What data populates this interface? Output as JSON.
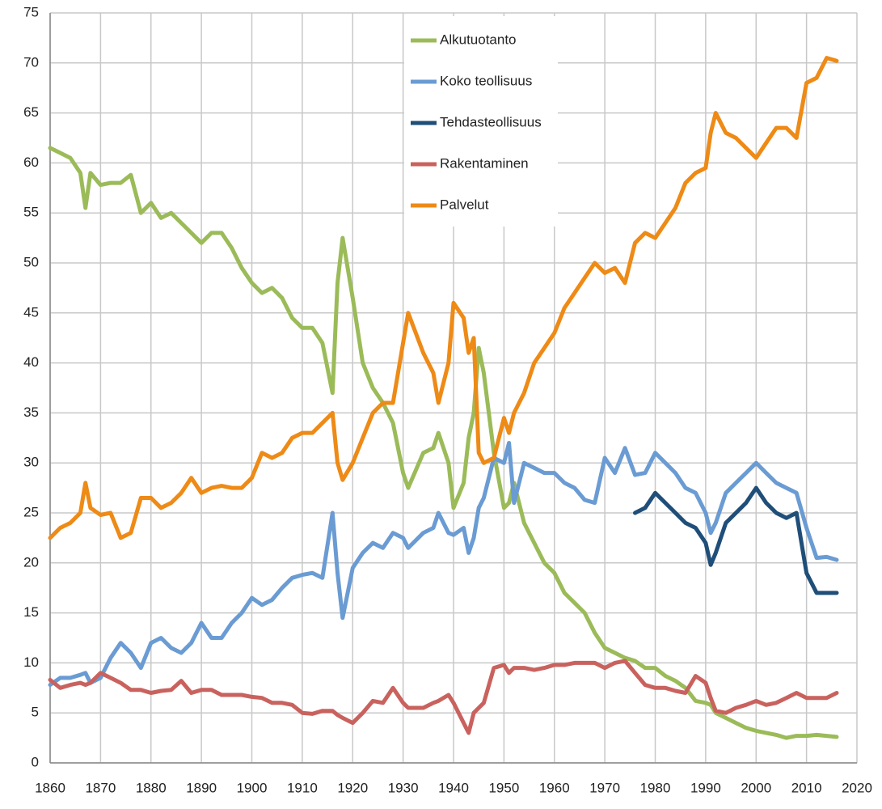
{
  "chart_data": {
    "type": "line",
    "x": [
      1860,
      1862,
      1864,
      1866,
      1867,
      1868,
      1870,
      1872,
      1874,
      1876,
      1878,
      1880,
      1882,
      1884,
      1886,
      1888,
      1890,
      1892,
      1894,
      1896,
      1898,
      1900,
      1902,
      1904,
      1906,
      1908,
      1910,
      1912,
      1914,
      1916,
      1917,
      1918,
      1920,
      1922,
      1924,
      1926,
      1928,
      1930,
      1931,
      1934,
      1936,
      1937,
      1939,
      1940,
      1942,
      1943,
      1944,
      1945,
      1946,
      1948,
      1950,
      1951,
      1952,
      1954,
      1956,
      1958,
      1960,
      1962,
      1964,
      1966,
      1968,
      1970,
      1972,
      1974,
      1976,
      1978,
      1980,
      1982,
      1984,
      1986,
      1988,
      1990,
      1991,
      1992,
      1994,
      1996,
      1998,
      2000,
      2002,
      2004,
      2006,
      2008,
      2010,
      2012,
      2014,
      2016
    ],
    "series": [
      {
        "name": "Alkutuotanto",
        "color": "#9bbb59",
        "values": [
          61.5,
          61,
          60.5,
          59,
          55.5,
          59,
          57.8,
          58,
          58,
          58.8,
          55,
          56,
          54.5,
          55,
          54,
          53,
          52,
          53,
          53,
          51.5,
          49.5,
          48,
          47,
          47.5,
          46.5,
          44.5,
          43.5,
          43.5,
          42,
          37,
          48,
          52.5,
          46.5,
          40,
          37.5,
          36,
          34,
          29,
          27.5,
          31,
          31.5,
          33,
          30,
          25.5,
          28,
          32.5,
          35,
          41.5,
          39,
          31,
          25.5,
          26,
          28,
          24,
          22,
          20,
          19,
          17,
          16,
          15,
          13,
          11.5,
          11,
          10.5,
          10.2,
          9.5,
          9.5,
          8.7,
          8.2,
          7.5,
          6.2,
          6,
          5.8,
          5,
          4.5,
          4,
          3.5,
          3.2,
          3,
          2.8,
          2.5,
          2.7,
          2.7,
          2.8,
          2.7,
          2.6
        ]
      },
      {
        "name": "Koko teollisuus",
        "color": "#6a9bd3",
        "values": [
          7.8,
          8.5,
          8.5,
          8.8,
          9,
          8,
          8.5,
          10.5,
          12,
          11,
          9.5,
          12,
          12.5,
          11.5,
          11,
          12,
          14,
          12.5,
          12.5,
          14,
          15,
          16.5,
          15.8,
          16.3,
          17.5,
          18.5,
          18.8,
          19,
          18.5,
          25,
          19,
          14.5,
          19.5,
          21,
          22,
          21.5,
          23,
          22.5,
          21.5,
          23,
          23.5,
          25,
          23,
          22.8,
          23.5,
          21,
          22.5,
          25.5,
          26.5,
          30.5,
          30,
          32,
          26,
          30,
          29.5,
          29,
          29,
          28,
          27.5,
          26.3,
          26,
          30.5,
          29,
          31.5,
          28.8,
          29,
          31,
          30,
          29,
          27.5,
          27,
          25,
          23,
          24,
          27,
          28,
          29,
          30,
          29,
          28,
          27.5,
          27,
          23.5,
          20.5,
          20.6,
          20.3
        ]
      },
      {
        "name": "Tehdasteollisuus",
        "color": "#1f4e79",
        "values": [
          null,
          null,
          null,
          null,
          null,
          null,
          null,
          null,
          null,
          null,
          null,
          null,
          null,
          null,
          null,
          null,
          null,
          null,
          null,
          null,
          null,
          null,
          null,
          null,
          null,
          null,
          null,
          null,
          null,
          null,
          null,
          null,
          null,
          null,
          null,
          null,
          null,
          null,
          null,
          null,
          null,
          null,
          null,
          null,
          null,
          null,
          null,
          null,
          null,
          null,
          null,
          null,
          null,
          null,
          null,
          null,
          null,
          null,
          null,
          null,
          null,
          null,
          null,
          null,
          25,
          25.5,
          27,
          26,
          25,
          24,
          23.5,
          22,
          19.8,
          21,
          24,
          25,
          26,
          27.5,
          26,
          25,
          24.5,
          25,
          19,
          17,
          17,
          17
        ]
      },
      {
        "name": "Rakentaminen",
        "color": "#c9625e",
        "values": [
          8.3,
          7.5,
          7.8,
          8,
          7.8,
          8,
          9,
          8.5,
          8,
          7.3,
          7.3,
          7,
          7.2,
          7.3,
          8.2,
          7,
          7.3,
          7.3,
          6.8,
          6.8,
          6.8,
          6.6,
          6.5,
          6,
          6,
          5.8,
          5,
          4.9,
          5.2,
          5.2,
          4.8,
          4.5,
          4,
          5,
          6.2,
          6,
          7.5,
          6,
          5.5,
          5.5,
          6,
          6.2,
          6.8,
          6,
          4,
          3,
          5,
          5.5,
          6,
          9.5,
          9.8,
          9,
          9.5,
          9.5,
          9.3,
          9.5,
          9.8,
          9.8,
          10,
          10,
          10,
          9.5,
          10,
          10.2,
          9,
          7.8,
          7.5,
          7.5,
          7.2,
          7,
          8.7,
          8,
          6.5,
          5.2,
          5,
          5.5,
          5.8,
          6.2,
          5.8,
          6,
          6.5,
          7,
          6.5,
          6.5,
          6.5,
          7
        ]
      },
      {
        "name": "Palvelut",
        "color": "#ee8a16",
        "values": [
          22.5,
          23.5,
          24,
          25,
          28,
          25.5,
          24.8,
          25,
          22.5,
          23,
          26.5,
          26.5,
          25.5,
          26,
          27,
          28.5,
          27,
          27.5,
          27.7,
          27.5,
          27.5,
          28.5,
          31,
          30.5,
          31,
          32.5,
          33,
          33,
          34,
          35,
          30,
          28.3,
          30,
          32.5,
          35,
          36,
          36,
          42,
          45,
          41,
          39,
          36,
          40,
          46,
          44.5,
          41,
          42.5,
          31,
          30,
          30.5,
          34.5,
          33,
          35,
          37,
          40,
          41.5,
          43,
          45.5,
          47,
          48.5,
          50,
          49,
          49.5,
          48,
          52,
          53,
          52.5,
          54,
          55.5,
          58,
          59,
          59.5,
          63,
          65,
          63,
          62.5,
          61.5,
          60.5,
          62,
          63.5,
          63.5,
          62.5,
          68,
          68.5,
          70.5,
          70.2
        ]
      }
    ],
    "xlim": [
      1860,
      2020
    ],
    "xticks": [
      1860,
      1870,
      1880,
      1890,
      1900,
      1910,
      1920,
      1930,
      1940,
      1950,
      1960,
      1970,
      1980,
      1990,
      2000,
      2010,
      2020
    ],
    "ylim": [
      0,
      75
    ],
    "yticks": [
      0,
      5,
      10,
      15,
      20,
      25,
      30,
      35,
      40,
      45,
      50,
      55,
      60,
      65,
      70,
      75
    ],
    "grid": true,
    "legend": "upper center"
  }
}
